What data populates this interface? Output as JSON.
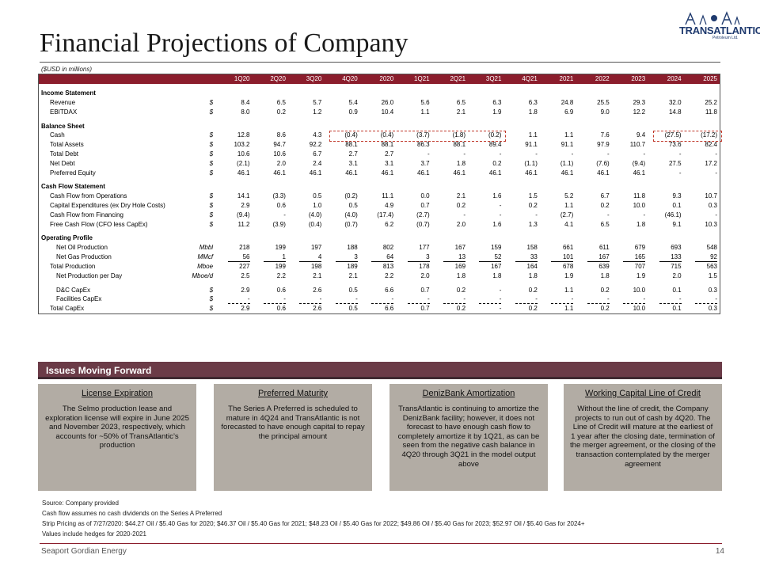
{
  "title": "Financial Projections of Company",
  "logo": {
    "word": "TRANSATLANTIC",
    "sub": "Petroleum Ltd."
  },
  "units_note": "($USD in millions)",
  "table": {
    "periods": [
      "1Q20",
      "2Q20",
      "3Q20",
      "4Q20",
      "2020",
      "1Q21",
      "2Q21",
      "3Q21",
      "4Q21",
      "2021",
      "2022",
      "2023",
      "2024",
      "2025"
    ],
    "rows": [
      {
        "type": "spacer"
      },
      {
        "type": "section",
        "label": "Income Statement"
      },
      {
        "type": "data",
        "label": "Revenue",
        "unit": "$",
        "indent": 1,
        "values": [
          "8.4",
          "6.5",
          "5.7",
          "5.4",
          "26.0",
          "5.6",
          "6.5",
          "6.3",
          "6.3",
          "24.8",
          "25.5",
          "29.3",
          "32.0",
          "25.2"
        ]
      },
      {
        "type": "data",
        "label": "EBITDAX",
        "unit": "$",
        "indent": 1,
        "values": [
          "8.0",
          "0.2",
          "1.2",
          "0.9",
          "10.4",
          "1.1",
          "2.1",
          "1.9",
          "1.8",
          "6.9",
          "9.0",
          "12.2",
          "14.8",
          "11.8"
        ]
      },
      {
        "type": "spacer"
      },
      {
        "type": "section",
        "label": "Balance Sheet"
      },
      {
        "type": "data",
        "label": "Cash",
        "unit": "$",
        "indent": 1,
        "values": [
          "12.8",
          "8.6",
          "4.3",
          "(0.4)",
          "(0.4)",
          "(3.7)",
          "(1.8)",
          "(0.2)",
          "1.1",
          "1.1",
          "7.6",
          "9.4",
          "(27.5)",
          "(17.2)"
        ]
      },
      {
        "type": "data",
        "label": "Total Assets",
        "unit": "$",
        "indent": 1,
        "values": [
          "103.2",
          "94.7",
          "92.2",
          "88.1",
          "88.1",
          "86.3",
          "88.1",
          "89.4",
          "91.1",
          "91.1",
          "97.9",
          "110.7",
          "73.6",
          "82.4"
        ]
      },
      {
        "type": "data",
        "label": "Total Debt",
        "unit": "$",
        "indent": 1,
        "values": [
          "10.6",
          "10.6",
          "6.7",
          "2.7",
          "2.7",
          "-",
          "-",
          "-",
          "-",
          "-",
          "-",
          "-",
          "-",
          "-"
        ]
      },
      {
        "type": "data",
        "label": "Net Debt",
        "unit": "$",
        "indent": 1,
        "values": [
          "(2.1)",
          "2.0",
          "2.4",
          "3.1",
          "3.1",
          "3.7",
          "1.8",
          "0.2",
          "(1.1)",
          "(1.1)",
          "(7.6)",
          "(9.4)",
          "27.5",
          "17.2"
        ]
      },
      {
        "type": "data",
        "label": "Preferred Equity",
        "unit": "$",
        "indent": 1,
        "values": [
          "46.1",
          "46.1",
          "46.1",
          "46.1",
          "46.1",
          "46.1",
          "46.1",
          "46.1",
          "46.1",
          "46.1",
          "46.1",
          "46.1",
          "-",
          "-"
        ]
      },
      {
        "type": "spacer"
      },
      {
        "type": "section",
        "label": "Cash Flow Statement"
      },
      {
        "type": "data",
        "label": "Cash Flow from Operations",
        "unit": "$",
        "indent": 1,
        "values": [
          "14.1",
          "(3.3)",
          "0.5",
          "(0.2)",
          "11.1",
          "0.0",
          "2.1",
          "1.6",
          "1.5",
          "5.2",
          "6.7",
          "11.8",
          "9.3",
          "10.7"
        ]
      },
      {
        "type": "data",
        "label": "Capital Expenditures (ex Dry Hole Costs)",
        "unit": "$",
        "indent": 1,
        "values": [
          "2.9",
          "0.6",
          "1.0",
          "0.5",
          "4.9",
          "0.7",
          "0.2",
          "-",
          "0.2",
          "1.1",
          "0.2",
          "10.0",
          "0.1",
          "0.3"
        ]
      },
      {
        "type": "data",
        "label": "Cash Flow from Financing",
        "unit": "$",
        "indent": 1,
        "values": [
          "(9.4)",
          "-",
          "(4.0)",
          "(4.0)",
          "(17.4)",
          "(2.7)",
          "-",
          "-",
          "-",
          "(2.7)",
          "-",
          "-",
          "(46.1)",
          "-"
        ]
      },
      {
        "type": "data",
        "label": "Free Cash Flow (CFO less CapEx)",
        "unit": "$",
        "indent": 1,
        "values": [
          "11.2",
          "(3.9)",
          "(0.4)",
          "(0.7)",
          "6.2",
          "(0.7)",
          "2.0",
          "1.6",
          "1.3",
          "4.1",
          "6.5",
          "1.8",
          "9.1",
          "10.3"
        ]
      },
      {
        "type": "spacer"
      },
      {
        "type": "section",
        "label": "Operating Profile"
      },
      {
        "type": "data",
        "label": "Net Oil Production",
        "unit": "Mbbl",
        "indent": 2,
        "values": [
          "218",
          "199",
          "197",
          "188",
          "802",
          "177",
          "167",
          "159",
          "158",
          "661",
          "611",
          "679",
          "693",
          "548"
        ]
      },
      {
        "type": "data",
        "label": "Net Gas Production",
        "unit": "MMcf",
        "indent": 2,
        "ul": true,
        "values": [
          "56",
          "1",
          "4",
          "3",
          "64",
          "3",
          "13",
          "52",
          "33",
          "101",
          "167",
          "165",
          "133",
          "92"
        ]
      },
      {
        "type": "data",
        "label": "Total Production",
        "unit": "Mboe",
        "indent": 1,
        "values": [
          "227",
          "199",
          "198",
          "189",
          "813",
          "178",
          "169",
          "167",
          "164",
          "678",
          "639",
          "707",
          "715",
          "563"
        ]
      },
      {
        "type": "data",
        "label": "Net Production per Day",
        "unit": "Mboe/d",
        "indent": 2,
        "values": [
          "2.5",
          "2.2",
          "2.1",
          "2.1",
          "2.2",
          "2.0",
          "1.8",
          "1.8",
          "1.8",
          "1.9",
          "1.8",
          "1.9",
          "2.0",
          "1.5"
        ]
      },
      {
        "type": "spacer"
      },
      {
        "type": "data",
        "label": "D&C CapEx",
        "unit": "$",
        "indent": 2,
        "values": [
          "2.9",
          "0.6",
          "2.6",
          "0.5",
          "6.6",
          "0.7",
          "0.2",
          "-",
          "0.2",
          "1.1",
          "0.2",
          "10.0",
          "0.1",
          "0.3"
        ]
      },
      {
        "type": "data",
        "label": "Facilities CapEx",
        "unit": "$",
        "indent": 2,
        "ulf": true,
        "values": [
          "-",
          "-",
          "-",
          "-",
          "-",
          "-",
          "-",
          "-",
          "-",
          "-",
          "-",
          "-",
          "-",
          "-"
        ]
      },
      {
        "type": "data",
        "label": "Total CapEx",
        "unit": "$",
        "indent": 1,
        "values": [
          "2.9",
          "0.6",
          "2.6",
          "0.5",
          "6.6",
          "0.7",
          "0.2",
          "-",
          "0.2",
          "1.1",
          "0.2",
          "10.0",
          "0.1",
          "0.3"
        ]
      }
    ]
  },
  "issues": {
    "header": "Issues Moving Forward",
    "cards": [
      {
        "title": "License Expiration",
        "body": "The Selmo production lease and exploration license will expire in June 2025 and November 2023, respectively, which accounts for ~50% of TransAtlantic’s production"
      },
      {
        "title": "Preferred Maturity",
        "body": "The Series A Preferred is scheduled to mature in 4Q24 and TransAtlantic is not forecasted to have enough capital to repay the principal amount"
      },
      {
        "title": "DenizBank Amortization",
        "body": "TransAtlantic is continuing to amortize the DenizBank facility; however, it does not forecast to have enough cash flow to completely amortize it by 1Q21, as can be seen from the negative cash balance in 4Q20 through 3Q21 in the model output above"
      },
      {
        "title": "Working Capital Line of Credit",
        "body": "Without the line of credit, the Company projects to run out of cash by 4Q20. The Line of Credit will mature at the earliest of 1 year after the closing date, termination of the merger agreement, or the closing of the transaction contemplated by the merger agreement"
      }
    ]
  },
  "footnotes": [
    "Source: Company provided",
    "Cash flow assumes no cash dividends on the Series A Preferred",
    "Strip Pricing as of 7/27/2020: $44.27 Oil / $5.40 Gas for 2020; $46.37 Oil / $5.40 Gas for 2021; $48.23 Oil / $5.40 Gas for 2022; $49.86 Oil / $5.40 Gas for 2023; $52.97 Oil / $5.40 Gas for 2024+",
    "Values include hedges for 2020-2021"
  ],
  "footer": {
    "brand": "Seaport Gordian Energy",
    "page": "14"
  },
  "colors": {
    "header_bg": "#8b1d2c",
    "issues_bar": "#6b3b47",
    "card_bg": "#b2aca4",
    "highlight": "#c0392b"
  }
}
